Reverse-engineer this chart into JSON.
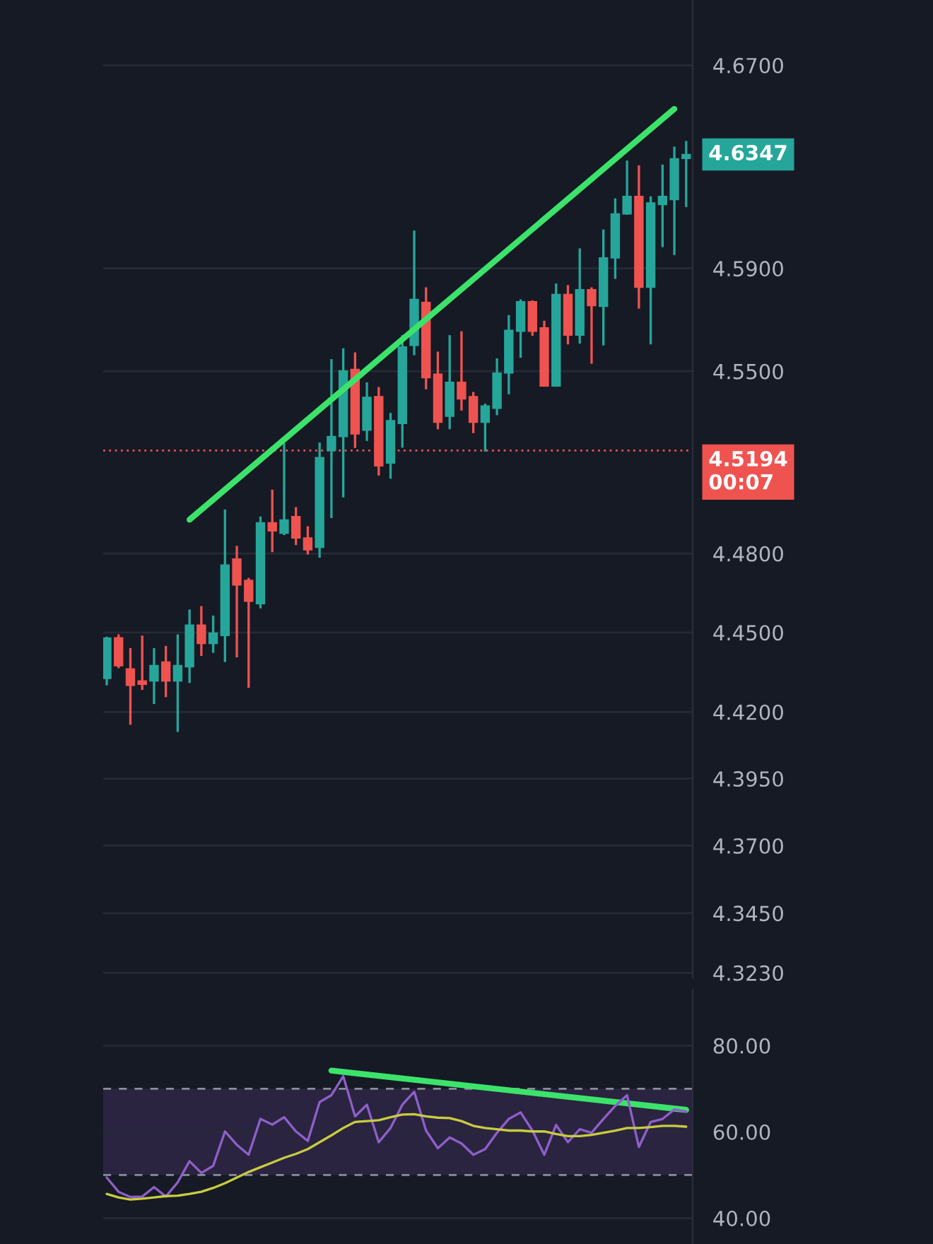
{
  "chart_data": [
    {
      "type": "candlestick",
      "categories": [
        null,
        null,
        null,
        null,
        null,
        null,
        null,
        null,
        null,
        null,
        null,
        null,
        null,
        null,
        null,
        null,
        null,
        null,
        null,
        null,
        null,
        null,
        null,
        null,
        null,
        null,
        null,
        null,
        null,
        null,
        null,
        null,
        null,
        null,
        null,
        null,
        null,
        null,
        null,
        null,
        null,
        null,
        null,
        null,
        null,
        null,
        null,
        null,
        null,
        null
      ],
      "ohlc": [
        [
          4.4326,
          4.4484,
          4.43,
          4.4479
        ],
        [
          4.448,
          4.4493,
          4.4365,
          4.4374
        ],
        [
          4.4362,
          4.4441,
          4.4152,
          4.43
        ],
        [
          4.4317,
          4.4488,
          4.4283,
          4.4304
        ],
        [
          4.4317,
          4.4441,
          4.423,
          4.4375
        ],
        [
          4.4388,
          4.4449,
          4.4256,
          4.4317
        ],
        [
          4.4317,
          4.4493,
          4.4125,
          4.4375
        ],
        [
          4.437,
          4.4587,
          4.4309,
          4.4528
        ],
        [
          4.4528,
          4.46,
          4.4411,
          4.4458
        ],
        [
          4.4458,
          4.4564,
          4.4423,
          4.4498
        ],
        [
          4.4488,
          4.4968,
          4.4388,
          4.4756
        ],
        [
          4.4779,
          4.4829,
          4.4406,
          4.468
        ],
        [
          4.4698,
          4.4707,
          4.4291,
          4.4618
        ],
        [
          4.4609,
          4.4941,
          4.4591,
          4.4917
        ],
        [
          4.4917,
          4.5044,
          4.4805,
          4.4886
        ],
        [
          4.4877,
          4.5222,
          4.487,
          4.4928
        ],
        [
          4.4941,
          4.4977,
          4.4832,
          4.4859
        ],
        [
          4.4859,
          4.4904,
          4.4796,
          4.4814
        ],
        [
          4.4823,
          4.5225,
          4.4784,
          4.5167
        ],
        [
          4.5194,
          4.5547,
          4.4935,
          4.5248
        ],
        [
          4.5248,
          4.5589,
          4.5014,
          4.5502
        ],
        [
          4.5507,
          4.5573,
          4.5204,
          4.5258
        ],
        [
          4.5272,
          4.5457,
          4.5231,
          4.5399
        ],
        [
          4.5402,
          4.5439,
          4.5098,
          4.5135
        ],
        [
          4.5146,
          4.5339,
          4.5086,
          4.5309
        ],
        [
          4.5298,
          4.564,
          4.5205,
          4.5594
        ],
        [
          4.56,
          4.6048,
          4.5562,
          4.5779
        ],
        [
          4.5767,
          4.5826,
          4.543,
          4.5475
        ],
        [
          4.5489,
          4.5576,
          4.5276,
          4.5303
        ],
        [
          4.5326,
          4.564,
          4.5276,
          4.5457
        ],
        [
          4.5457,
          4.5655,
          4.5348,
          4.5393
        ],
        [
          4.5402,
          4.542,
          4.5261,
          4.5303
        ],
        [
          4.5303,
          4.5375,
          4.519,
          4.5366
        ],
        [
          4.5357,
          4.555,
          4.533,
          4.5493
        ],
        [
          4.5493,
          4.5718,
          4.5411,
          4.5659
        ],
        [
          4.5655,
          4.5779,
          4.5552,
          4.577
        ],
        [
          4.577,
          4.5775,
          4.5637,
          4.5655
        ],
        [
          4.5668,
          4.5696,
          4.544,
          4.5443
        ],
        [
          4.5443,
          4.5841,
          4.544,
          4.5798
        ],
        [
          4.5798,
          4.5835,
          4.5604,
          4.564
        ],
        [
          4.564,
          4.5978,
          4.5607,
          4.5817
        ],
        [
          4.5817,
          4.5826,
          4.5529,
          4.5755
        ],
        [
          4.5752,
          4.6052,
          4.56,
          4.5941
        ],
        [
          4.5941,
          4.6174,
          4.5859,
          4.6113
        ],
        [
          4.6113,
          4.6323,
          4.611,
          4.6182
        ],
        [
          4.6182,
          4.6304,
          4.5743,
          4.5826
        ],
        [
          4.5826,
          4.6182,
          4.5604,
          4.6156
        ],
        [
          4.615,
          4.6307,
          4.5983,
          4.6182
        ],
        [
          4.6169,
          4.6378,
          4.5952,
          4.633
        ],
        [
          4.6331,
          4.64,
          4.614,
          4.6347
        ]
      ],
      "colors": [
        "#26a69a",
        "#ef5350",
        "#ef5350",
        "#ef5350",
        "#26a69a",
        "#ef5350",
        "#26a69a",
        "#26a69a",
        "#ef5350",
        "#26a69a",
        "#26a69a",
        "#ef5350",
        "#ef5350",
        "#26a69a",
        "#ef5350",
        "#26a69a",
        "#ef5350",
        "#ef5350",
        "#26a69a",
        "#26a69a",
        "#26a69a",
        "#ef5350",
        "#26a69a",
        "#ef5350",
        "#26a69a",
        "#26a69a",
        "#26a69a",
        "#ef5350",
        "#ef5350",
        "#26a69a",
        "#ef5350",
        "#ef5350",
        "#26a69a",
        "#26a69a",
        "#26a69a",
        "#26a69a",
        "#ef5350",
        "#ef5350",
        "#26a69a",
        "#ef5350",
        "#26a69a",
        "#ef5350",
        "#26a69a",
        "#26a69a",
        "#26a69a",
        "#ef5350",
        "#26a69a",
        "#26a69a",
        "#26a69a",
        "#26a69a"
      ],
      "series": [
        {
          "type": "line",
          "color": "#3ce36a",
          "values": [
            null,
            null,
            null,
            null,
            null,
            null,
            null,
            4.4929,
            null,
            null,
            null,
            null,
            null,
            null,
            null,
            null,
            null,
            null,
            null,
            null,
            null,
            null,
            null,
            null,
            null,
            null,
            null,
            null,
            null,
            null,
            null,
            null,
            null,
            null,
            null,
            null,
            null,
            null,
            null,
            null,
            null,
            null,
            null,
            null,
            null,
            null,
            null,
            null,
            4.6527,
            null
          ]
        }
      ],
      "log": true,
      "ylim": [
        4.321,
        4.696
      ],
      "yticks": [
        {
          "value": 4.323,
          "label": "4.3230"
        },
        {
          "value": 4.345,
          "label": "4.3450"
        },
        {
          "value": 4.37,
          "label": "4.3700"
        },
        {
          "value": 4.395,
          "label": "4.3950"
        },
        {
          "value": 4.42,
          "label": "4.4200"
        },
        {
          "value": 4.45,
          "label": "4.4500"
        },
        {
          "value": 4.48,
          "label": "4.4800"
        },
        {
          "value": 4.55,
          "label": "4.5500"
        },
        {
          "value": 4.59,
          "label": "4.5900"
        },
        {
          "value": 4.67,
          "label": "4.6700"
        }
      ],
      "ref_lines": [
        {
          "axis": "y",
          "value": 4.5194,
          "label": "4.5194",
          "color": "#ef5350",
          "line_style": "dotted"
        }
      ],
      "annotations": [
        "4.6347",
        "00:07"
      ],
      "grid": "y",
      "tick_labels": "y"
    },
    {
      "type": "line",
      "categories": [
        null,
        null,
        null,
        null,
        null,
        null,
        null,
        null,
        null,
        null,
        null,
        null,
        null,
        null,
        null,
        null,
        null,
        null,
        null,
        null,
        null,
        null,
        null,
        null,
        null,
        null,
        null,
        null,
        null,
        null,
        null,
        null,
        null,
        null,
        null,
        null,
        null,
        null,
        null,
        null,
        null,
        null,
        null,
        null,
        null,
        null,
        null,
        null,
        null,
        null
      ],
      "series": [
        {
          "color": "#8e5fc9",
          "values": [
            49.4,
            46.1,
            44.9,
            45.0,
            47.2,
            45.0,
            48.3,
            53.2,
            50.5,
            52.1,
            60.1,
            57.0,
            54.7,
            63.0,
            61.7,
            63.4,
            60.1,
            57.9,
            66.9,
            68.5,
            72.9,
            63.6,
            66.3,
            57.6,
            60.9,
            66.3,
            69.3,
            60.3,
            56.2,
            58.7,
            57.3,
            54.7,
            56.0,
            59.8,
            63.0,
            64.5,
            60.3,
            54.7,
            61.6,
            57.6,
            60.6,
            59.8,
            63.0,
            66.0,
            68.5,
            56.5,
            62.3,
            63.0,
            65.2,
            64.7
          ]
        },
        {
          "color": "#c9cc3f",
          "values": [
            45.6,
            44.8,
            44.3,
            44.5,
            44.8,
            45.1,
            45.2,
            45.6,
            46.1,
            47.0,
            48.1,
            49.4,
            50.7,
            51.8,
            52.9,
            54.0,
            54.9,
            56.0,
            57.6,
            59.2,
            60.9,
            62.3,
            62.5,
            62.7,
            63.4,
            64.0,
            64.1,
            63.6,
            63.3,
            63.2,
            62.5,
            61.4,
            60.9,
            60.6,
            60.3,
            60.3,
            60.1,
            60.1,
            59.5,
            59.0,
            59.0,
            59.3,
            59.8,
            60.3,
            60.9,
            60.9,
            61.1,
            61.4,
            61.4,
            61.2
          ]
        },
        {
          "color": "#3ce36a",
          "values": [
            null,
            null,
            null,
            null,
            null,
            null,
            null,
            null,
            null,
            null,
            null,
            null,
            null,
            null,
            null,
            null,
            null,
            null,
            null,
            74.2,
            null,
            null,
            null,
            null,
            null,
            null,
            null,
            null,
            null,
            null,
            null,
            null,
            null,
            null,
            null,
            null,
            null,
            null,
            null,
            null,
            null,
            null,
            null,
            null,
            null,
            null,
            null,
            null,
            null,
            65.1
          ]
        }
      ],
      "ylim": [
        34,
        93
      ],
      "yticks": [
        {
          "value": 40,
          "label": "40.00"
        },
        {
          "value": 60,
          "label": "60.00"
        },
        {
          "value": 80,
          "label": "80.00"
        }
      ],
      "ref_lines": [
        {
          "axis": "y",
          "value": 70,
          "color": "#8a8e99",
          "line_style": "dashed"
        },
        {
          "axis": "y",
          "value": 50,
          "color": "#8a8e99",
          "line_style": "dashed"
        }
      ],
      "bands": [
        {
          "axis": "y",
          "from": 50,
          "to": 70,
          "color": "#2a2440"
        }
      ],
      "grid": "y",
      "tick_labels": "y"
    }
  ]
}
